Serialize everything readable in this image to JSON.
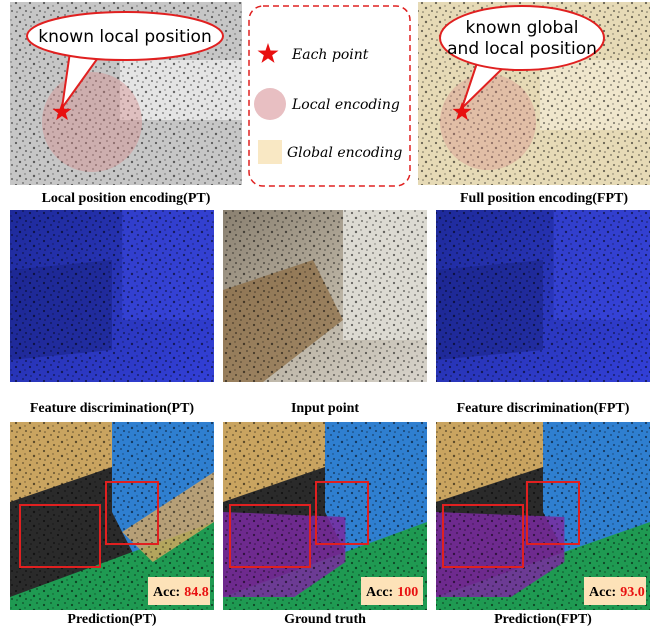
{
  "top": {
    "left": {
      "callout": "known local position",
      "caption": "Local position encoding(PT)"
    },
    "legend": [
      {
        "label": "Each point"
      },
      {
        "label": "Local encoding"
      },
      {
        "label": "Global encoding"
      }
    ],
    "right": {
      "callout": [
        "known global",
        "and local position"
      ],
      "caption": "Full position encoding(FPT)"
    }
  },
  "middle": {
    "captions": [
      "Feature discrimination(PT)",
      "Input point",
      "Feature discrimination(FPT)"
    ]
  },
  "bottom": {
    "panels": [
      {
        "caption": "Prediction(PT)",
        "acc_label": "Acc:",
        "acc": "84.8"
      },
      {
        "caption": "Ground truth",
        "acc_label": "Acc:",
        "acc": "100"
      },
      {
        "caption": "Prediction(FPT)",
        "acc_label": "Acc:",
        "acc": "93.0"
      }
    ]
  }
}
